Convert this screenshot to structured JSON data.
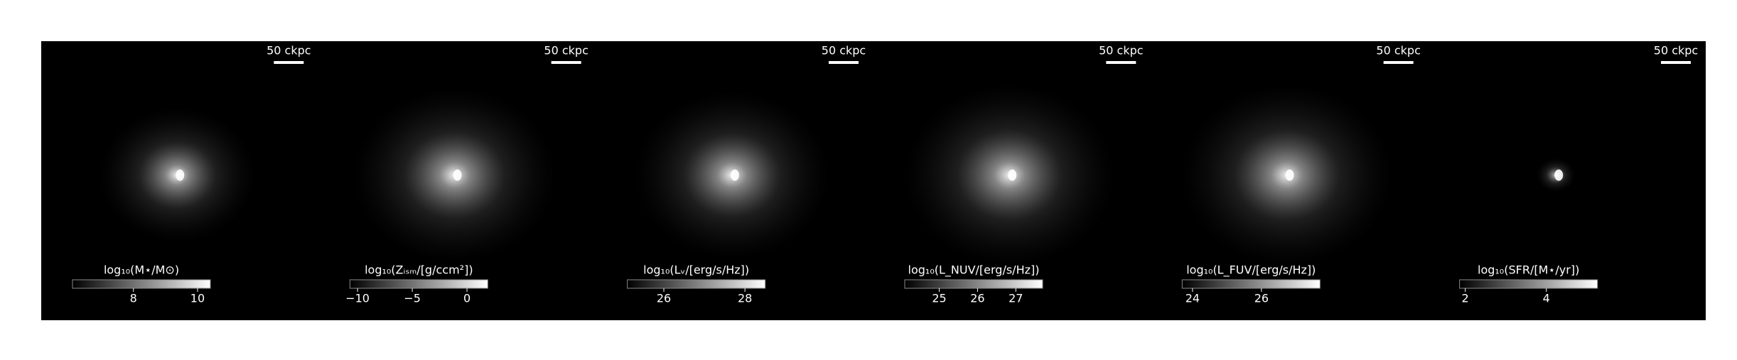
{
  "chart_data": [
    {
      "type": "image",
      "scale_label": "50 ckpc",
      "colorbar_label": "log₁₀(M⋆/M⊙)",
      "clim": [
        6.1,
        10.4
      ],
      "cticks": [
        8,
        10
      ],
      "cmap": [
        "#000000",
        "#ffffff"
      ]
    },
    {
      "type": "image",
      "scale_label": "50 ckpc",
      "colorbar_label": "log₁₀(Zᵢₛₘ/[g/ccm²])",
      "clim": [
        -10.7,
        1.9
      ],
      "cticks": [
        {
          "value": -10,
          "label": "−10"
        },
        {
          "value": -5,
          "label": "−5"
        },
        0
      ],
      "cmap": [
        "#000000",
        "#ffffff"
      ]
    },
    {
      "type": "image",
      "scale_label": "50 ckpc",
      "colorbar_label": "log₁₀(Lᵥ/[erg/s/Hz])",
      "clim": [
        25.1,
        28.5
      ],
      "cticks": [
        26,
        28
      ],
      "cmap": [
        "#000000",
        "#ffffff"
      ]
    },
    {
      "type": "image",
      "scale_label": "50 ckpc",
      "colorbar_label": "log₁₀(L_NUV/[erg/s/Hz])",
      "clim": [
        24.1,
        27.7
      ],
      "cticks": [
        25,
        26,
        27
      ],
      "cmap": [
        "#000000",
        "#ffffff"
      ]
    },
    {
      "type": "image",
      "scale_label": "50 ckpc",
      "colorbar_label": "log₁₀(L_FUV/[erg/s/Hz])",
      "clim": [
        23.7,
        27.7
      ],
      "cticks": [
        24,
        26
      ],
      "cmap": [
        "#000000",
        "#ffffff"
      ]
    },
    {
      "type": "image",
      "scale_label": "50 ckpc",
      "colorbar_label": "log₁₀(SFR/[M⋆/yr])",
      "clim": [
        1.86,
        5.26
      ],
      "cticks": [
        2,
        4
      ],
      "cmap": [
        "#000000",
        "#ffffff"
      ]
    }
  ]
}
